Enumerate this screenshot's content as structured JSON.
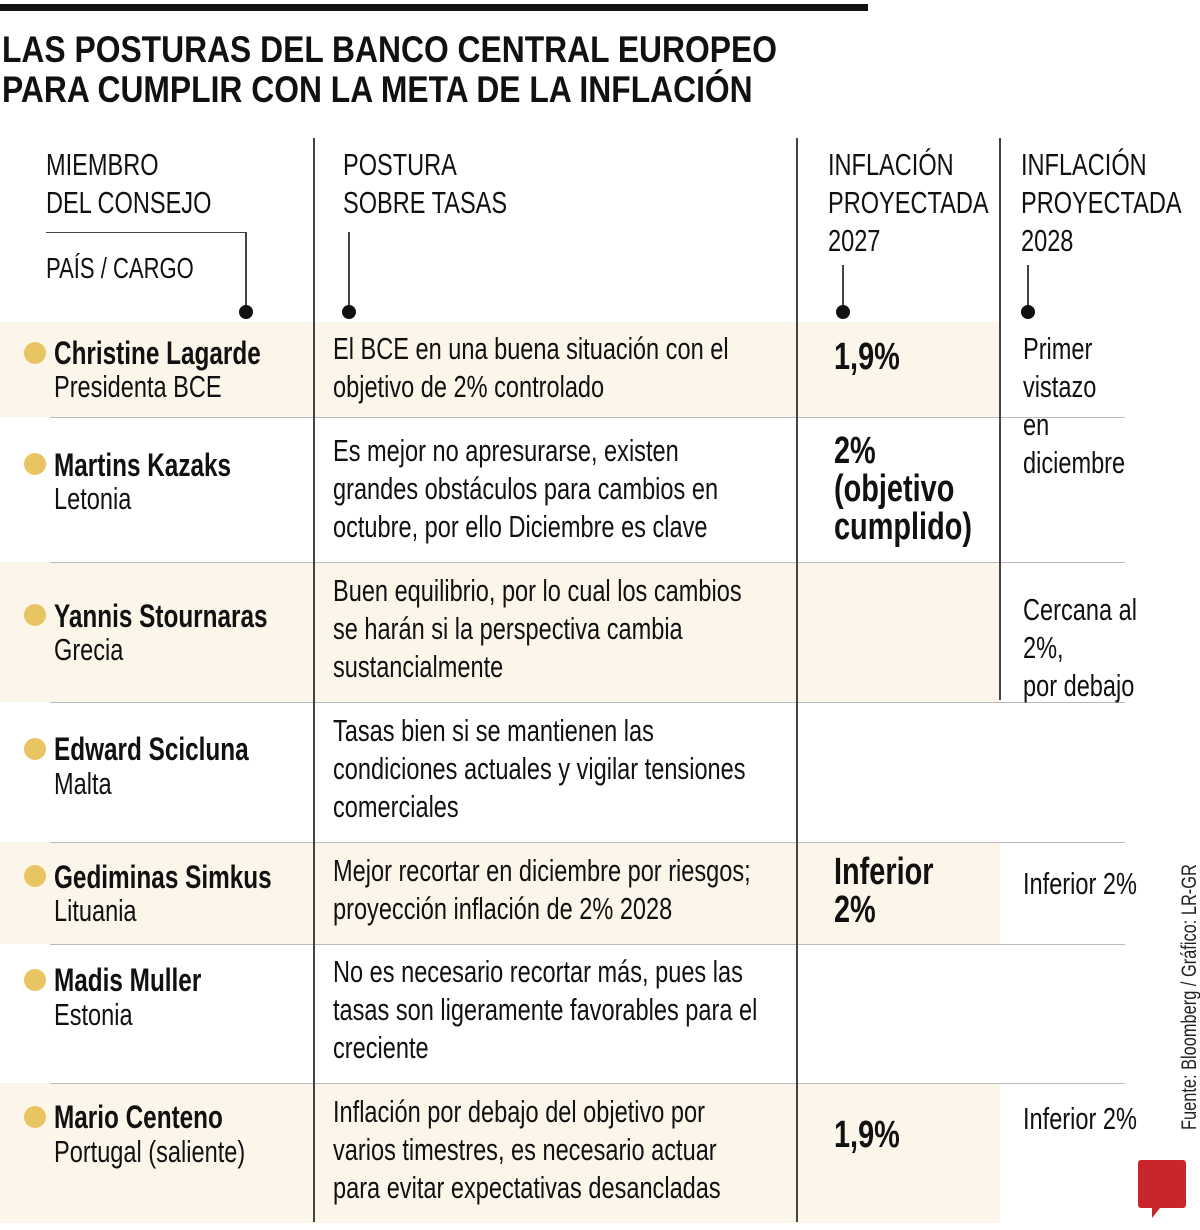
{
  "title": "LAS POSTURAS DEL BANCO CENTRAL EUROPEO\nPARA CUMPLIR CON LA META DE LA INFLACIÓN",
  "headers": {
    "member": "MIEMBRO\nDEL CONSEJO",
    "member_sub": "PAÍS / CARGO",
    "stance": "POSTURA\nSOBRE TASAS",
    "infl2027": "INFLACIÓN\nPROYECTADA\n2027",
    "infl2028": "INFLACIÓN\nPROYECTADA\n2028"
  },
  "rows": [
    {
      "name": "Christine Lagarde",
      "role": "Presidenta BCE",
      "stance": "El BCE en una buena situación con el\nobjetivo de 2% controlado",
      "infl2027": "1,9%",
      "infl2028": "Primer vistazo\nen diciembre"
    },
    {
      "name": "Martins Kazaks",
      "role": "Letonia",
      "stance": "Es mejor no apresurarse, existen\ngrandes obstáculos para cambios en\noctubre, por ello Diciembre es clave",
      "infl2027": "2%\n(objetivo\ncumplido)",
      "infl2028": ""
    },
    {
      "name": "Yannis Stournaras",
      "role": "Grecia",
      "stance": "Buen equilibrio, por lo cual los cambios\nse harán si la perspectiva cambia\nsustancialmente",
      "infl2027": "",
      "infl2028": "Cercana al 2%,\npor debajo"
    },
    {
      "name": "Edward Scicluna",
      "role": "Malta",
      "stance": "Tasas bien si se mantienen las\ncondiciones actuales y vigilar tensiones\ncomerciales",
      "infl2027": "",
      "infl2028": ""
    },
    {
      "name": "Gediminas Simkus",
      "role": "Lituania",
      "stance": "Mejor recortar en diciembre por riesgos;\nproyección inflación de 2% 2028",
      "infl2027": "Inferior\n2%",
      "infl2028": "Inferior 2%"
    },
    {
      "name": "Madis Muller",
      "role": "Estonia",
      "stance": "No es necesario recortar más, pues las\ntasas son ligeramente favorables para el\ncreciente",
      "infl2027": "",
      "infl2028": ""
    },
    {
      "name": "Mario Centeno",
      "role": "Portugal (saliente)",
      "stance": "Inflación por debajo del objetivo por\nvarios timestres, es necesario actuar\npara evitar expectativas desancladas",
      "infl2027": "1,9%",
      "infl2028": "Inferior 2%"
    }
  ],
  "source": "Fuente: Bloomberg / Gráfico: LR-GR",
  "logo": "LR",
  "colors": {
    "shade": "#fcf5ea",
    "bullet": "#e8c463",
    "logo": "#c8262a"
  }
}
